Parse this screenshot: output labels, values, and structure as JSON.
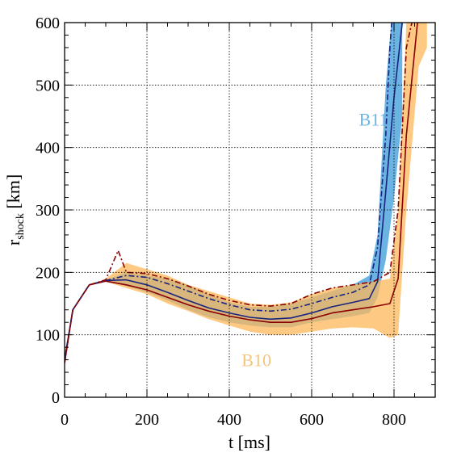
{
  "chart_data": {
    "type": "line",
    "xlabel": "t [ms]",
    "ylabel_main": "r",
    "ylabel_sub": "shock",
    "ylabel_unit": " [km]",
    "xlim": [
      0,
      900
    ],
    "ylim": [
      0,
      600
    ],
    "xticks": [
      0,
      200,
      400,
      600,
      800
    ],
    "yticks": [
      0,
      100,
      200,
      300,
      400,
      500,
      600
    ],
    "grid": true,
    "grid_x": [
      200,
      400,
      600,
      800
    ],
    "grid_y": [
      100,
      200,
      300,
      400,
      500
    ],
    "labels": [
      {
        "text": "B11",
        "x": 715,
        "y": 435,
        "color": "#6cb4e4"
      },
      {
        "text": "B10",
        "x": 430,
        "y": 50,
        "color": "#f5c57d"
      }
    ],
    "bands": [
      {
        "name": "B11",
        "color": "#3a9ad9",
        "x": [
          0,
          20,
          60,
          100,
          150,
          200,
          250,
          300,
          350,
          400,
          450,
          500,
          550,
          600,
          650,
          700,
          740,
          760,
          780,
          800,
          820
        ],
        "upper": [
          60,
          140,
          180,
          188,
          200,
          195,
          190,
          180,
          165,
          152,
          145,
          145,
          150,
          160,
          170,
          180,
          195,
          260,
          500,
          650,
          650
        ],
        "lower": [
          60,
          140,
          180,
          186,
          178,
          168,
          155,
          140,
          128,
          120,
          115,
          112,
          112,
          120,
          125,
          130,
          135,
          160,
          220,
          320,
          450
        ]
      },
      {
        "name": "B10",
        "color": "#fdb85a",
        "x": [
          0,
          20,
          60,
          100,
          150,
          200,
          250,
          300,
          350,
          400,
          450,
          500,
          550,
          600,
          650,
          700,
          750,
          790,
          810,
          830,
          860,
          880
        ],
        "upper": [
          60,
          140,
          180,
          190,
          215,
          205,
          195,
          180,
          170,
          160,
          150,
          148,
          152,
          165,
          175,
          180,
          185,
          190,
          300,
          600,
          650,
          650
        ],
        "lower": [
          60,
          140,
          180,
          185,
          175,
          165,
          150,
          138,
          125,
          115,
          105,
          100,
          100,
          105,
          110,
          112,
          110,
          95,
          100,
          300,
          530,
          560
        ]
      }
    ],
    "series": [
      {
        "style": "solid",
        "color": "#1a237e",
        "x": [
          0,
          20,
          60,
          100,
          150,
          200,
          250,
          300,
          350,
          400,
          450,
          500,
          550,
          600,
          650,
          700,
          740,
          760,
          780,
          800,
          820
        ],
        "y": [
          60,
          140,
          180,
          187,
          188,
          180,
          168,
          155,
          143,
          135,
          128,
          125,
          127,
          135,
          145,
          152,
          158,
          185,
          330,
          480,
          600
        ]
      },
      {
        "style": "solid",
        "color": "#8b0000",
        "x": [
          0,
          20,
          60,
          100,
          150,
          200,
          250,
          300,
          350,
          400,
          450,
          500,
          550,
          600,
          650,
          700,
          750,
          790,
          810,
          830,
          860
        ],
        "y": [
          55,
          140,
          180,
          186,
          180,
          172,
          160,
          148,
          138,
          130,
          124,
          120,
          120,
          126,
          135,
          140,
          145,
          150,
          190,
          420,
          620
        ]
      },
      {
        "style": "dashdot",
        "color": "#1a237e",
        "x": [
          0,
          20,
          60,
          100,
          150,
          200,
          250,
          300,
          350,
          400,
          450,
          500,
          550,
          600,
          650,
          700,
          740,
          760,
          780,
          790,
          800
        ],
        "y": [
          60,
          140,
          180,
          187,
          195,
          192,
          182,
          170,
          158,
          148,
          140,
          138,
          141,
          150,
          160,
          168,
          180,
          240,
          420,
          560,
          650
        ]
      },
      {
        "style": "dashdot",
        "color": "#8b0000",
        "x": [
          0,
          20,
          60,
          100,
          130,
          150,
          200,
          250,
          300,
          350,
          400,
          450,
          500,
          550,
          600,
          650,
          700,
          750,
          790,
          810,
          830,
          860
        ],
        "y": [
          55,
          140,
          180,
          188,
          235,
          200,
          198,
          190,
          178,
          165,
          155,
          148,
          146,
          150,
          165,
          175,
          180,
          185,
          200,
          300,
          560,
          650
        ]
      }
    ]
  }
}
